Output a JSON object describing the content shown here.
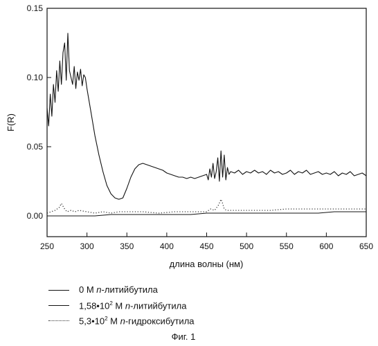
{
  "chart_data": {
    "type": "line",
    "xlabel": "длина волны (нм)",
    "ylabel": "F(R)",
    "xlim": [
      250,
      650
    ],
    "ylim": [
      -0.015,
      0.15
    ],
    "xticks": [
      250,
      300,
      350,
      400,
      450,
      500,
      550,
      600,
      650
    ],
    "yticks": [
      0.0,
      0.05,
      0.1,
      0.15
    ],
    "xtick_labels": [
      "250",
      "300",
      "350",
      "400",
      "450",
      "500",
      "550",
      "600",
      "650"
    ],
    "ytick_labels": [
      "0.00",
      "0.05",
      "0.10",
      "0.15"
    ],
    "grid": false,
    "legend_position": "below",
    "series": [
      {
        "name": "0 М n-литийбутила",
        "style": "solid",
        "color": "#111111",
        "x": [
          250,
          252,
          254,
          256,
          258,
          260,
          262,
          264,
          266,
          268,
          270,
          272,
          274,
          276,
          278,
          280,
          282,
          284,
          286,
          288,
          290,
          292,
          294,
          296,
          298,
          300,
          305,
          310,
          315,
          320,
          325,
          330,
          335,
          340,
          345,
          350,
          355,
          360,
          365,
          370,
          375,
          380,
          385,
          390,
          395,
          400,
          405,
          410,
          415,
          420,
          425,
          430,
          435,
          440,
          445,
          450,
          452,
          454,
          456,
          458,
          460,
          462,
          464,
          466,
          468,
          470,
          472,
          474,
          476,
          478,
          480,
          485,
          490,
          495,
          500,
          505,
          510,
          515,
          520,
          525,
          530,
          535,
          540,
          545,
          550,
          555,
          560,
          565,
          570,
          575,
          580,
          585,
          590,
          595,
          600,
          605,
          610,
          615,
          620,
          625,
          630,
          635,
          640,
          645,
          650
        ],
        "y": [
          0.078,
          0.065,
          0.088,
          0.072,
          0.095,
          0.082,
          0.105,
          0.09,
          0.112,
          0.095,
          0.118,
          0.125,
          0.098,
          0.132,
          0.105,
          0.1,
          0.095,
          0.108,
          0.092,
          0.104,
          0.098,
          0.106,
          0.094,
          0.102,
          0.1,
          0.092,
          0.075,
          0.058,
          0.044,
          0.032,
          0.022,
          0.016,
          0.013,
          0.012,
          0.013,
          0.02,
          0.028,
          0.034,
          0.037,
          0.038,
          0.037,
          0.036,
          0.035,
          0.034,
          0.033,
          0.031,
          0.03,
          0.029,
          0.028,
          0.028,
          0.027,
          0.028,
          0.027,
          0.028,
          0.029,
          0.03,
          0.026,
          0.034,
          0.028,
          0.038,
          0.027,
          0.032,
          0.042,
          0.025,
          0.047,
          0.028,
          0.044,
          0.026,
          0.035,
          0.03,
          0.032,
          0.031,
          0.033,
          0.03,
          0.032,
          0.031,
          0.033,
          0.031,
          0.032,
          0.03,
          0.033,
          0.031,
          0.032,
          0.03,
          0.031,
          0.033,
          0.03,
          0.032,
          0.031,
          0.033,
          0.03,
          0.031,
          0.032,
          0.03,
          0.031,
          0.03,
          0.032,
          0.029,
          0.031,
          0.03,
          0.032,
          0.029,
          0.03,
          0.031,
          0.029
        ]
      },
      {
        "name": "1,58•10² М n-литийбутила",
        "style": "solid",
        "color": "#111111",
        "x": [
          250,
          270,
          290,
          310,
          330,
          350,
          370,
          390,
          410,
          430,
          450,
          470,
          490,
          510,
          530,
          550,
          570,
          590,
          610,
          630,
          650
        ],
        "y": [
          0.0,
          0.0,
          0.0,
          0.0,
          0.001,
          0.001,
          0.001,
          0.001,
          0.001,
          0.001,
          0.002,
          0.002,
          0.002,
          0.002,
          0.002,
          0.002,
          0.002,
          0.002,
          0.003,
          0.003,
          0.003
        ]
      },
      {
        "name": "5,3•10² М n-гидроксибутила",
        "style": "dotted",
        "color": "#333333",
        "x": [
          250,
          255,
          260,
          265,
          268,
          270,
          272,
          275,
          280,
          285,
          290,
          300,
          310,
          320,
          330,
          340,
          350,
          370,
          390,
          410,
          430,
          450,
          455,
          460,
          465,
          468,
          470,
          472,
          475,
          480,
          490,
          510,
          530,
          550,
          570,
          590,
          610,
          630,
          650
        ],
        "y": [
          0.002,
          0.003,
          0.004,
          0.006,
          0.009,
          0.007,
          0.005,
          0.003,
          0.004,
          0.003,
          0.004,
          0.003,
          0.002,
          0.003,
          0.002,
          0.003,
          0.003,
          0.003,
          0.002,
          0.003,
          0.003,
          0.003,
          0.005,
          0.004,
          0.008,
          0.012,
          0.009,
          0.005,
          0.004,
          0.004,
          0.004,
          0.004,
          0.004,
          0.005,
          0.005,
          0.005,
          0.005,
          0.005,
          0.005
        ]
      }
    ]
  },
  "legend": {
    "rows": [
      {
        "prefix": "0 М ",
        "italic": "n",
        "suffix": "-литийбутила",
        "sup": ""
      },
      {
        "prefix": "1,58•10",
        "sup": "2",
        "prefix2": " М ",
        "italic": "n",
        "suffix": "-литийбутила"
      },
      {
        "prefix": "5,3•10",
        "sup": "2",
        "prefix2": " М ",
        "italic": "n",
        "suffix": "-гидроксибутила"
      }
    ]
  },
  "caption": "Фиг. 1"
}
